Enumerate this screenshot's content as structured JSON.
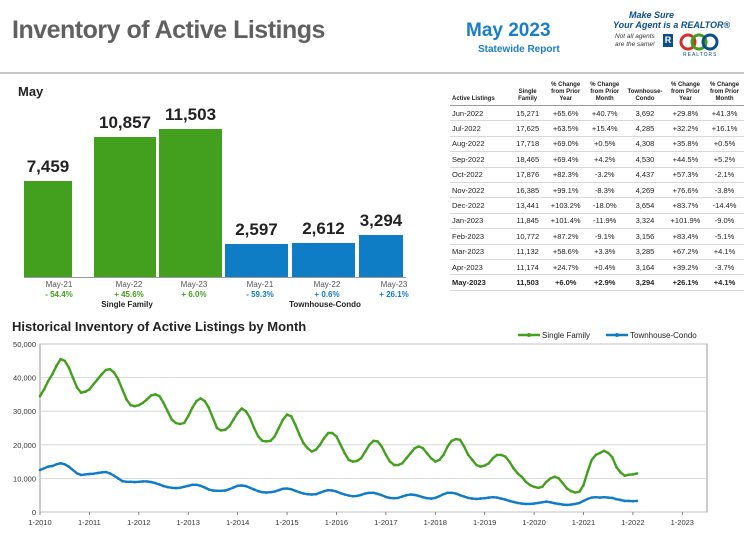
{
  "header": {
    "title": "Inventory of Active Listings",
    "report_month": "May 2023",
    "report_sub": "Statewide Report",
    "logo_line1": "Make Sure",
    "logo_line2": "Your Agent is a REALTOR®",
    "logo_note": "Not all agents are the same!",
    "logo_org": "REALTORS"
  },
  "colors": {
    "single_family": "#43a01e",
    "townhouse": "#0f7cc6",
    "title_gray": "#5f6062",
    "accent_blue": "#1a7ec8"
  },
  "chart_data": [
    {
      "type": "bar",
      "title": "May",
      "groups": [
        "Single Family",
        "Townhouse-Condo"
      ],
      "categories": [
        "May-21",
        "May-22",
        "May-23"
      ],
      "series": [
        {
          "name": "Single Family",
          "values": [
            7459,
            10857,
            11503
          ],
          "labels": [
            "7,459",
            "10,857",
            "11,503"
          ],
          "changes": [
            "- 54.4%",
            "+ 45.6%",
            "+ 6.0%"
          ]
        },
        {
          "name": "Townhouse-Condo",
          "values": [
            2597,
            2612,
            3294
          ],
          "labels": [
            "2,597",
            "2,612",
            "3,294"
          ],
          "changes": [
            "- 59.3%",
            "+ 0.6%",
            "+ 26.1%"
          ]
        }
      ]
    },
    {
      "type": "table",
      "columns": [
        "Active Listings",
        "Single Family",
        "% Change from Prior Year",
        "% Change from Prior Month",
        "Townhouse-Condo",
        "% Change from Prior Year",
        "% Change from Prior Month"
      ],
      "rows": [
        [
          "Jun-2022",
          "15,271",
          "+65.6%",
          "+40.7%",
          "3,692",
          "+29.8%",
          "+41.3%"
        ],
        [
          "Jul-2022",
          "17,625",
          "+63.5%",
          "+15.4%",
          "4,285",
          "+32.2%",
          "+16.1%"
        ],
        [
          "Aug-2022",
          "17,718",
          "+69.0%",
          "+0.5%",
          "4,308",
          "+35.8%",
          "+0.5%"
        ],
        [
          "Sep-2022",
          "18,465",
          "+69.4%",
          "+4.2%",
          "4,530",
          "+44.5%",
          "+5.2%"
        ],
        [
          "Oct-2022",
          "17,876",
          "+82.3%",
          "-3.2%",
          "4,437",
          "+57.3%",
          "-2.1%"
        ],
        [
          "Nov-2022",
          "16,385",
          "+99.1%",
          "-8.3%",
          "4,269",
          "+76.6%",
          "-3.8%"
        ],
        [
          "Dec-2022",
          "13,441",
          "+103.2%",
          "-18.0%",
          "3,654",
          "+83.7%",
          "-14.4%"
        ],
        [
          "Jan-2023",
          "11,845",
          "+101.4%",
          "-11.9%",
          "3,324",
          "+101.9%",
          "-9.0%"
        ],
        [
          "Feb-2023",
          "10,772",
          "+87.2%",
          "-9.1%",
          "3,156",
          "+83.4%",
          "-5.1%"
        ],
        [
          "Mar-2023",
          "11,132",
          "+58.6%",
          "+3.3%",
          "3,285",
          "+67.2%",
          "+4.1%"
        ],
        [
          "Apr-2023",
          "11,174",
          "+24.7%",
          "+0.4%",
          "3,164",
          "+39.2%",
          "-3.7%"
        ],
        [
          "May-2023",
          "11,503",
          "+6.0%",
          "+2.9%",
          "3,294",
          "+26.1%",
          "+4.1%"
        ]
      ]
    },
    {
      "type": "line",
      "title": "Historical Inventory of Active Listings by Month",
      "ylim": [
        0,
        50000
      ],
      "yticks": [
        "0",
        "10,000",
        "20,000",
        "30,000",
        "40,000",
        "50,000"
      ],
      "xticks": [
        "1-2010",
        "1-2011",
        "1-2012",
        "1-2013",
        "1-2014",
        "1-2015",
        "1-2016",
        "1-2017",
        "1-2018",
        "1-2019",
        "1-2020",
        "1-2021",
        "1-2022",
        "1-2023"
      ],
      "x_start": "2010-01",
      "grid": true,
      "legend": "top-right",
      "series": [
        {
          "name": "Single Family",
          "values": [
            34500,
            36500,
            39000,
            41000,
            43500,
            45500,
            45000,
            43000,
            40000,
            37000,
            35500,
            35800,
            36500,
            38000,
            39500,
            41000,
            42300,
            42500,
            41500,
            39500,
            36500,
            33500,
            31800,
            31500,
            31800,
            32500,
            33500,
            34700,
            35000,
            34500,
            32500,
            30000,
            27500,
            26500,
            26200,
            26500,
            28500,
            31000,
            33000,
            33800,
            33000,
            31000,
            28000,
            25000,
            24300,
            24500,
            25500,
            27500,
            29500,
            30800,
            30000,
            28000,
            25000,
            22500,
            21200,
            21000,
            21200,
            22500,
            25000,
            27500,
            29000,
            28500,
            26000,
            23000,
            20500,
            19000,
            18000,
            18500,
            20000,
            22000,
            23500,
            23500,
            22500,
            20000,
            17500,
            15500,
            15000,
            15200,
            16000,
            18000,
            20000,
            21200,
            21000,
            19500,
            17000,
            15000,
            14000,
            14000,
            14500,
            16000,
            17500,
            19000,
            19500,
            19000,
            17500,
            16000,
            15000,
            15500,
            17000,
            19500,
            21200,
            21700,
            21500,
            19500,
            17000,
            15500,
            14000,
            13500,
            13800,
            14500,
            16000,
            17000,
            17000,
            16500,
            15000,
            13000,
            11500,
            10500,
            9000,
            8000,
            7500,
            7200,
            7500,
            9000,
            10000,
            10500,
            10000,
            8500,
            7000,
            6200,
            5800,
            6000,
            8000,
            12000,
            15500,
            17000,
            17600,
            18200,
            17600,
            16300,
            13400,
            11800,
            10800,
            11100,
            11200,
            11500
          ]
        },
        {
          "name": "Townhouse-Condo",
          "values": [
            12500,
            13000,
            13500,
            13700,
            14200,
            14500,
            14200,
            13500,
            12500,
            11500,
            11000,
            11200,
            11300,
            11400,
            11600,
            11800,
            11900,
            11500,
            10800,
            10000,
            9200,
            9000,
            9000,
            8900,
            9000,
            9100,
            9100,
            8900,
            8600,
            8200,
            7700,
            7400,
            7200,
            7100,
            7200,
            7500,
            7800,
            8100,
            8100,
            7800,
            7300,
            6700,
            6400,
            6300,
            6300,
            6400,
            6800,
            7300,
            7800,
            7900,
            7700,
            7200,
            6700,
            6200,
            5900,
            5800,
            5900,
            6100,
            6500,
            6900,
            7000,
            6800,
            6300,
            5900,
            5500,
            5300,
            5200,
            5300,
            5700,
            6200,
            6500,
            6400,
            6100,
            5600,
            5200,
            4900,
            4700,
            4800,
            5100,
            5500,
            5700,
            5700,
            5400,
            5000,
            4500,
            4200,
            4100,
            4200,
            4600,
            5000,
            5200,
            5100,
            4800,
            4400,
            4100,
            4000,
            4200,
            4700,
            5300,
            5700,
            5700,
            5500,
            5000,
            4600,
            4200,
            4000,
            3900,
            4000,
            4100,
            4300,
            4400,
            4300,
            4000,
            3700,
            3300,
            3000,
            2700,
            2500,
            2400,
            2400,
            2500,
            2700,
            2900,
            3100,
            2900,
            2600,
            2400,
            2200,
            2100,
            2200,
            2400,
            2700,
            3300,
            3900,
            4300,
            4400,
            4300,
            4400,
            4300,
            4200,
            3800,
            3600,
            3300,
            3300,
            3200,
            3300
          ]
        }
      ]
    }
  ]
}
